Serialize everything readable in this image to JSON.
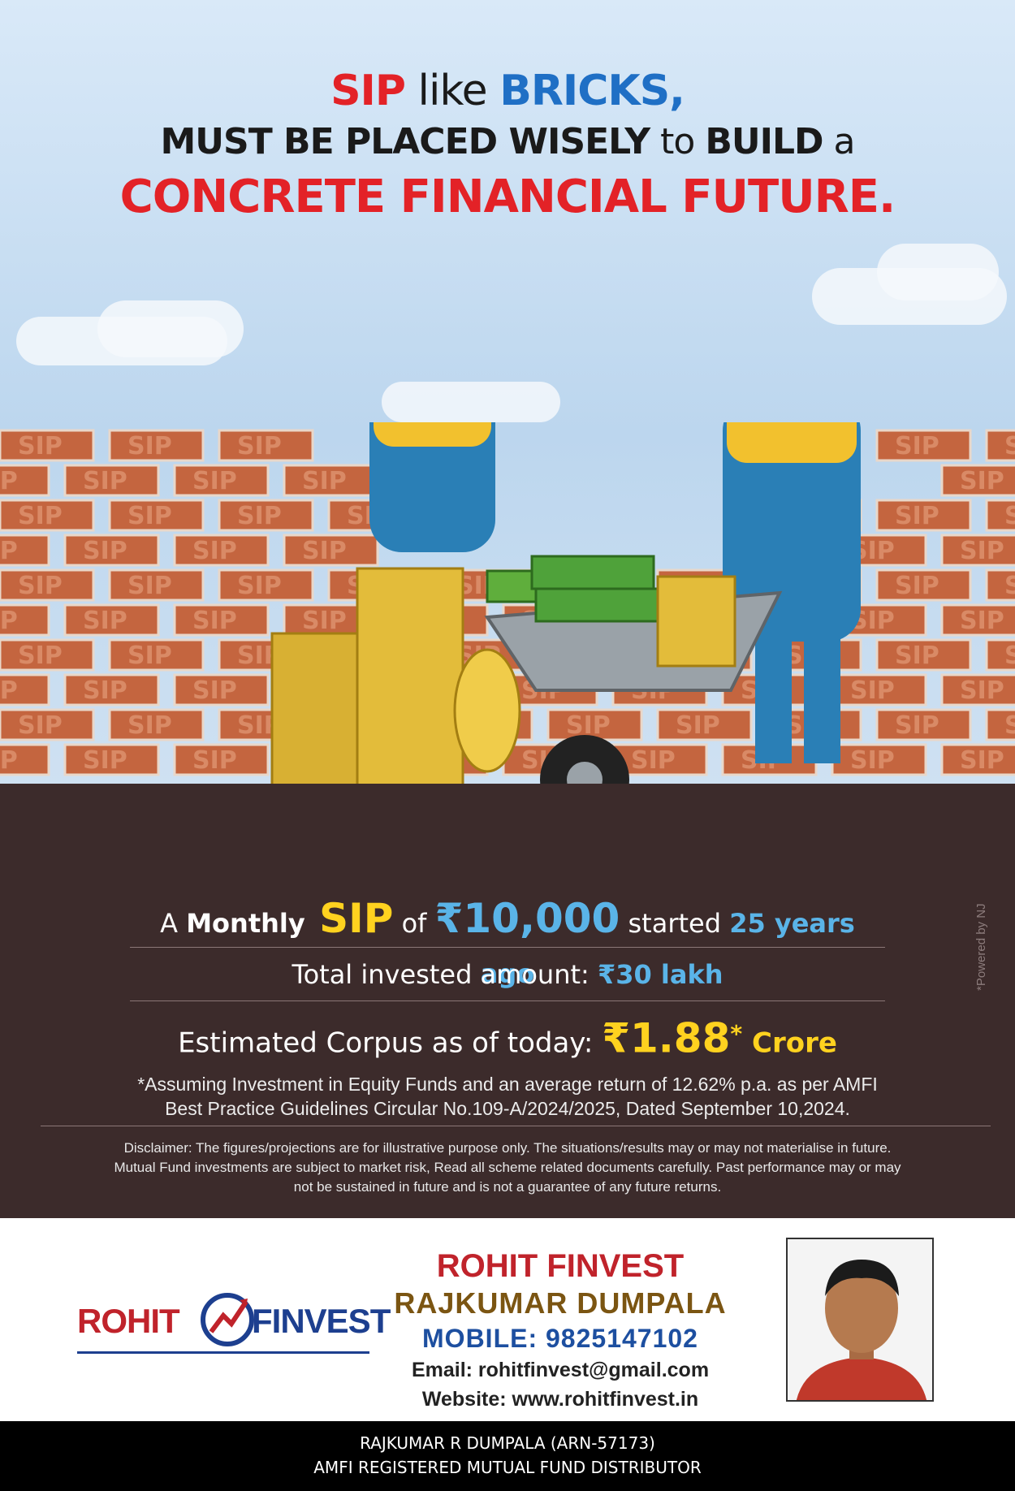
{
  "headline": {
    "line1_a": "SIP",
    "line1_b": " like ",
    "line1_c": "BRICKS,",
    "line2_a": "MUST BE PLACED WISELY",
    "line2_b": " to ",
    "line2_c": "BUILD",
    "line2_d": " a",
    "line3": "CONCRETE FINANCIAL FUTURE."
  },
  "brick_label": "SIP",
  "stats": {
    "r1_a": "A ",
    "r1_b": "Monthly",
    "r1_c": " SIP",
    "r1_d": " of ",
    "r1_e": "₹10,000",
    "r1_f": " started ",
    "r1_g": "25 years ago",
    "r2_a": "Total invested amount: ",
    "r2_b": "₹30 lakh",
    "r3_a": "Estimated Corpus as of today: ",
    "r3_b": "₹1.88",
    "r3_star": "*",
    "r3_c": " Crore"
  },
  "note_line1": "*Assuming Investment in Equity Funds and an average return of 12.62% p.a. as per AMFI",
  "note_line2": "Best Practice  Guidelines Circular No.109-A/2024/2025, Dated September 10,2024.",
  "disclaimer_line1": "Disclaimer: The figures/projections are for illustrative purpose only. The situations/results may or may not materialise in future.",
  "disclaimer_line2": "Mutual Fund investments are subject to market risk, Read all scheme related documents carefully. Past performance may or may",
  "disclaimer_line3": "not be sustained in future and is not a guarantee of any future returns.",
  "powered_by": "*Powered by NJ",
  "logo": {
    "left": "ROHIT",
    "right": "FINVEST"
  },
  "contact": {
    "firm": "ROHIT FINVEST",
    "person": "RAJKUMAR DUMPALA",
    "mobile": "MOBILE: 9825147102",
    "email": "Email: rohitfinvest@gmail.com",
    "website": "Website: www.rohitfinvest.in"
  },
  "footer": {
    "line1": "RAJKUMAR R DUMPALA (ARN-57173)",
    "line2": "AMFI REGISTERED MUTUAL FUND DISTRIBUTOR"
  },
  "colors": {
    "accent_red": "#e32227",
    "accent_blue": "#1f6fc5",
    "gold": "#ffd21f",
    "cyan": "#5ab4e8",
    "brown": "#3c2b2b"
  }
}
